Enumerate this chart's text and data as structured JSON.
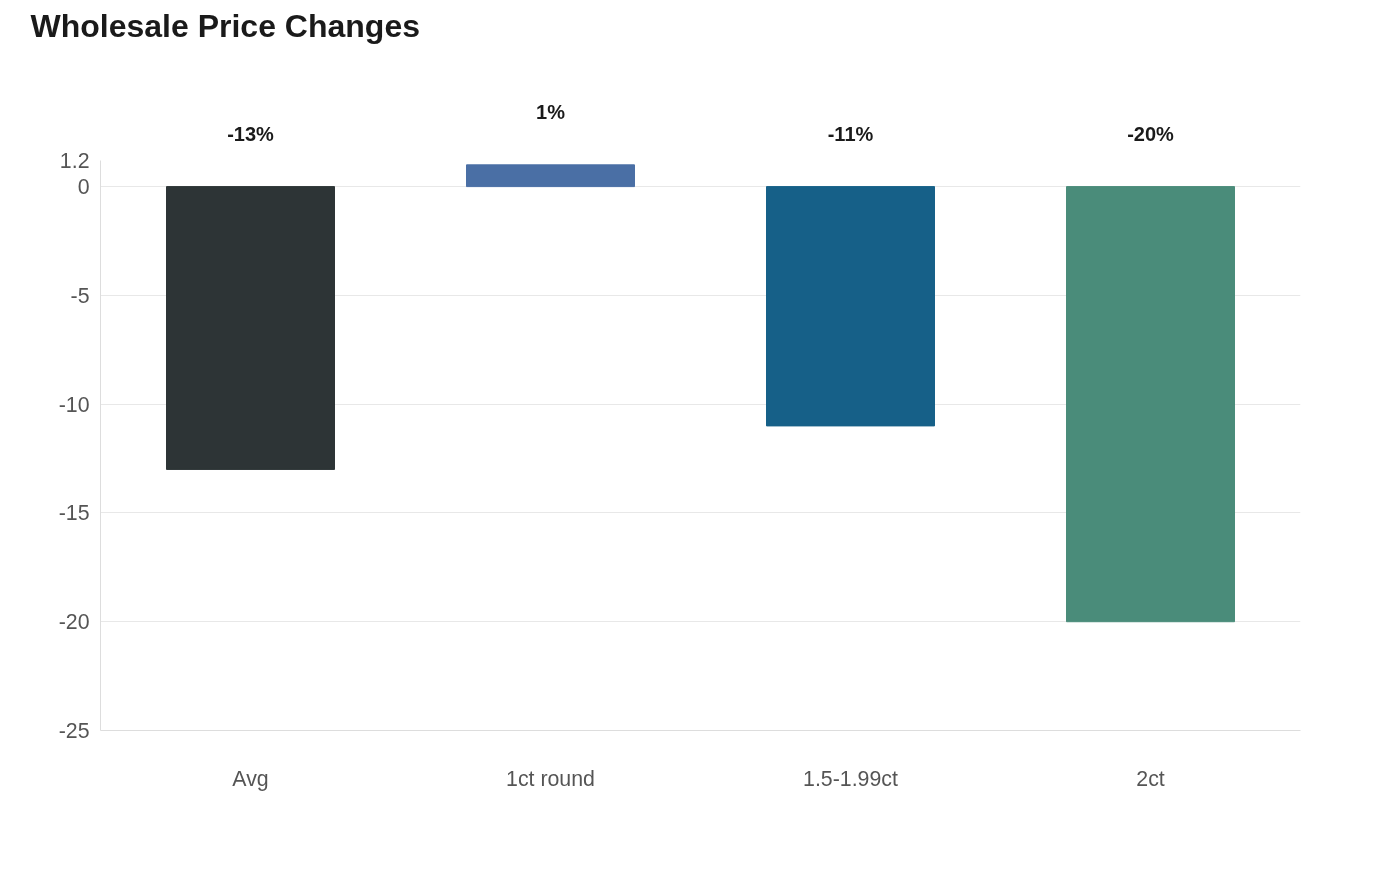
{
  "chart_data": {
    "type": "bar",
    "title": "Wholesale Price Changes",
    "categories": [
      "Avg",
      "1ct round",
      "1.5-1.99ct",
      "2ct"
    ],
    "values": [
      -13,
      1,
      -11,
      -20
    ],
    "colors": [
      "#2d3436",
      "#4a6fa5",
      "#166088",
      "#4a8c7a"
    ],
    "value_labels": [
      "-13%",
      "1%",
      "-11%",
      "-20%"
    ],
    "ylim": [
      -25,
      1.2
    ],
    "yticks": [
      -25,
      -20,
      -15,
      -10,
      -5,
      0,
      1.2
    ],
    "grid": "y",
    "legend": false
  }
}
